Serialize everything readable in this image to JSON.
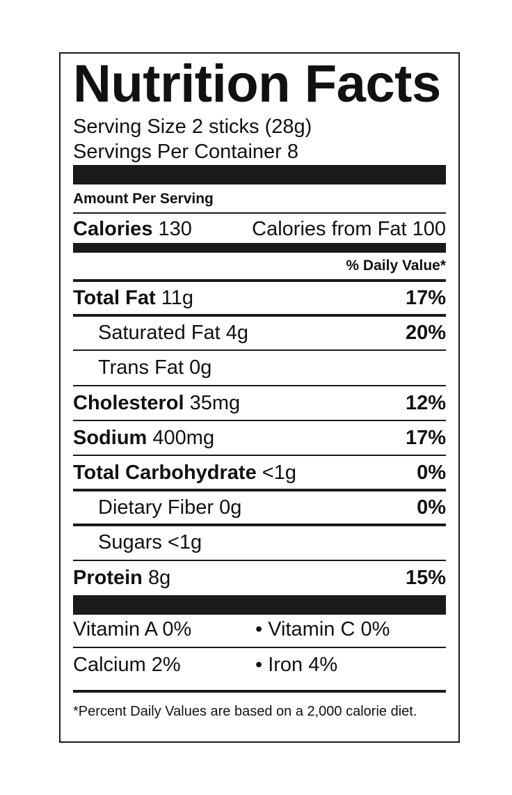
{
  "title": "Nutrition Facts",
  "serving_size": "Serving Size 2 sticks (28g)",
  "servings_per_container": "Servings Per Container 8",
  "amount_per_serving": "Amount Per Serving",
  "calories": {
    "label": "Calories",
    "value": "130",
    "from_fat_label": "Calories from Fat",
    "from_fat_value": "100"
  },
  "daily_value_header": "% Daily Value*",
  "nutrients": {
    "total_fat": {
      "label": "Total Fat",
      "amount": "11g",
      "dv": "17%"
    },
    "saturated_fat": {
      "label": "Saturated Fat",
      "amount": "4g",
      "dv": "20%"
    },
    "trans_fat": {
      "label": "Trans Fat",
      "amount": "0g",
      "dv": ""
    },
    "cholesterol": {
      "label": "Cholesterol",
      "amount": "35mg",
      "dv": "12%"
    },
    "sodium": {
      "label": "Sodium",
      "amount": "400mg",
      "dv": "17%"
    },
    "total_carbohydrate": {
      "label": "Total Carbohydrate",
      "amount": "<1g",
      "dv": "0%"
    },
    "dietary_fiber": {
      "label": "Dietary Fiber",
      "amount": "0g",
      "dv": "0%"
    },
    "sugars": {
      "label": "Sugars",
      "amount": "<1g",
      "dv": ""
    },
    "protein": {
      "label": "Protein",
      "amount": "8g",
      "dv": "15%"
    }
  },
  "vitamins": {
    "vitamin_a": "Vitamin A 0%",
    "vitamin_c": "• Vitamin C 0%",
    "calcium": "Calcium 2%",
    "iron": "• Iron 4%"
  },
  "footnote": "*Percent Daily Values are based on a 2,000 calorie diet."
}
